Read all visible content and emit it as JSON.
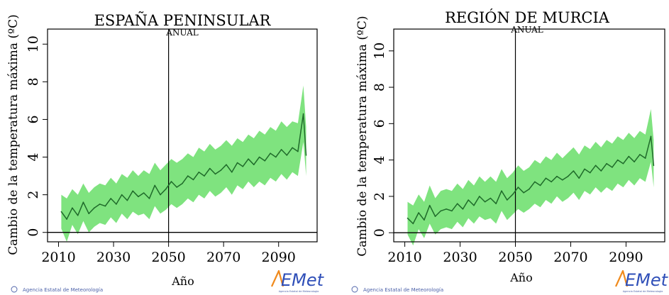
{
  "colors": {
    "band": "#7fe37f",
    "line": "#1f6b2a",
    "axis": "#000000",
    "logo_blue": "#2f4fb8",
    "logo_orange": "#f08a1c",
    "credit": "#4a5fa8"
  },
  "chart_data": [
    {
      "type": "area",
      "title": "ESPAÑA PENINSULAR",
      "subtitle": "ANUAL",
      "xlabel": "Año",
      "ylabel": "Cambio de la temperatura máxima (ºC)",
      "xlim": [
        2006,
        2104
      ],
      "ylim": [
        -0.5,
        10.8
      ],
      "xticks": [
        2010,
        2030,
        2050,
        2070,
        2090
      ],
      "yticks": [
        0,
        2,
        4,
        6,
        8,
        10
      ],
      "vline": 2050,
      "hline": 0,
      "x": [
        2011,
        2013,
        2015,
        2017,
        2019,
        2021,
        2023,
        2025,
        2027,
        2029,
        2031,
        2033,
        2035,
        2037,
        2039,
        2041,
        2043,
        2045,
        2047,
        2049,
        2051,
        2053,
        2055,
        2057,
        2059,
        2061,
        2063,
        2065,
        2067,
        2069,
        2071,
        2073,
        2075,
        2077,
        2079,
        2081,
        2083,
        2085,
        2087,
        2089,
        2091,
        2093,
        2095,
        2097,
        2099,
        2100
      ],
      "series": [
        {
          "mean": [
            1.1,
            0.7,
            1.3,
            0.9,
            1.6,
            1.0,
            1.3,
            1.5,
            1.4,
            1.8,
            1.5,
            2.0,
            1.7,
            2.2,
            1.9,
            2.1,
            1.8,
            2.5,
            2.0,
            2.3,
            2.7,
            2.4,
            2.6,
            3.0,
            2.8,
            3.2,
            3.0,
            3.4,
            3.1,
            3.3,
            3.6,
            3.2,
            3.7,
            3.5,
            3.9,
            3.6,
            4.0,
            3.8,
            4.2,
            4.0,
            4.4,
            4.1,
            4.5,
            4.3,
            6.3,
            4.1
          ],
          "upper": [
            2.0,
            1.8,
            2.3,
            2.0,
            2.6,
            2.1,
            2.4,
            2.6,
            2.5,
            2.9,
            2.6,
            3.1,
            2.9,
            3.3,
            3.0,
            3.3,
            3.1,
            3.7,
            3.3,
            3.6,
            3.9,
            3.7,
            3.9,
            4.2,
            4.0,
            4.5,
            4.3,
            4.7,
            4.4,
            4.6,
            4.9,
            4.6,
            5.0,
            4.8,
            5.2,
            5.0,
            5.4,
            5.2,
            5.6,
            5.4,
            5.9,
            5.6,
            5.9,
            5.8,
            7.8,
            5.6
          ],
          "lower": [
            0.2,
            -0.5,
            0.4,
            -0.1,
            0.6,
            0.0,
            0.3,
            0.5,
            0.4,
            0.8,
            0.5,
            1.0,
            0.7,
            1.1,
            0.9,
            1.0,
            0.7,
            1.4,
            1.0,
            1.2,
            1.5,
            1.3,
            1.5,
            1.8,
            1.6,
            2.0,
            1.8,
            2.2,
            1.9,
            2.1,
            2.4,
            2.0,
            2.5,
            2.3,
            2.7,
            2.4,
            2.7,
            2.5,
            2.9,
            2.7,
            3.1,
            2.8,
            3.2,
            3.0,
            4.8,
            3.0
          ]
        }
      ],
      "credit": "Agencia Estatal de Meteorología",
      "logo": "AEMet"
    },
    {
      "type": "area",
      "title": "REGIÓN DE MURCIA",
      "subtitle": "ANUAL",
      "xlabel": "Año",
      "ylabel": "Cambio de la temperatura máxima (ºC)",
      "xlim": [
        2006,
        2104
      ],
      "ylim": [
        -0.5,
        11.2
      ],
      "xticks": [
        2010,
        2030,
        2050,
        2070,
        2090
      ],
      "yticks": [
        0,
        2,
        4,
        6,
        8,
        10
      ],
      "vline": 2050,
      "hline": 0,
      "x": [
        2011,
        2013,
        2015,
        2017,
        2019,
        2021,
        2023,
        2025,
        2027,
        2029,
        2031,
        2033,
        2035,
        2037,
        2039,
        2041,
        2043,
        2045,
        2047,
        2049,
        2051,
        2053,
        2055,
        2057,
        2059,
        2061,
        2063,
        2065,
        2067,
        2069,
        2071,
        2073,
        2075,
        2077,
        2079,
        2081,
        2083,
        2085,
        2087,
        2089,
        2091,
        2093,
        2095,
        2097,
        2099,
        2100
      ],
      "series": [
        {
          "mean": [
            0.8,
            0.5,
            1.1,
            0.7,
            1.5,
            0.9,
            1.2,
            1.3,
            1.2,
            1.6,
            1.3,
            1.8,
            1.5,
            2.0,
            1.7,
            1.9,
            1.6,
            2.3,
            1.8,
            2.1,
            2.5,
            2.2,
            2.4,
            2.8,
            2.6,
            3.0,
            2.8,
            3.1,
            2.9,
            3.1,
            3.4,
            3.0,
            3.5,
            3.3,
            3.7,
            3.4,
            3.8,
            3.6,
            4.0,
            3.8,
            4.2,
            3.9,
            4.3,
            4.1,
            5.3,
            3.7
          ],
          "upper": [
            1.7,
            1.5,
            2.1,
            1.7,
            2.6,
            1.9,
            2.3,
            2.4,
            2.3,
            2.7,
            2.4,
            2.9,
            2.6,
            3.1,
            2.8,
            3.1,
            2.8,
            3.5,
            3.0,
            3.3,
            3.7,
            3.4,
            3.6,
            4.0,
            3.8,
            4.2,
            4.0,
            4.4,
            4.1,
            4.4,
            4.7,
            4.3,
            4.8,
            4.6,
            5.0,
            4.7,
            5.1,
            4.9,
            5.3,
            5.1,
            5.5,
            5.2,
            5.6,
            5.4,
            6.8,
            5.1
          ],
          "lower": [
            -0.1,
            -0.7,
            0.2,
            -0.3,
            0.5,
            -0.1,
            0.2,
            0.3,
            0.2,
            0.6,
            0.3,
            0.8,
            0.5,
            0.9,
            0.7,
            0.8,
            0.5,
            1.2,
            0.7,
            1.0,
            1.3,
            1.1,
            1.3,
            1.6,
            1.4,
            1.8,
            1.6,
            2.0,
            1.7,
            1.9,
            2.2,
            1.8,
            2.3,
            2.1,
            2.5,
            2.2,
            2.5,
            2.3,
            2.7,
            2.5,
            2.9,
            2.6,
            3.0,
            2.8,
            3.9,
            2.5
          ]
        }
      ],
      "credit": "Agencia Estatal de Meteorología",
      "logo": "AEMet"
    }
  ]
}
